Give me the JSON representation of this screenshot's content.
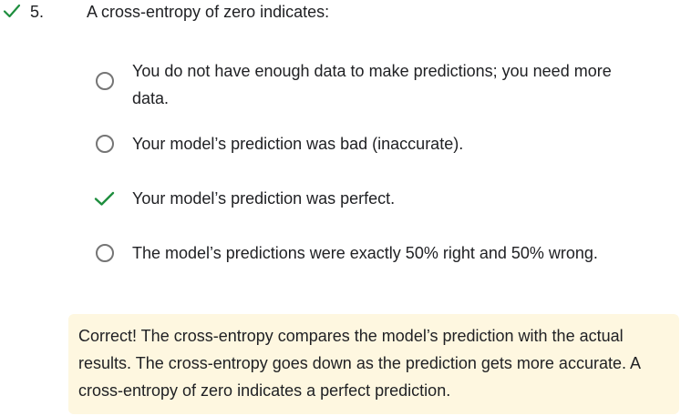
{
  "question": {
    "number": "5.",
    "text": "A cross-entropy of zero indicates:",
    "status_icon": "check-icon",
    "status_color": "#1e8e3e"
  },
  "options": [
    {
      "label": "You do not have enough data to make predictions; you need more data.",
      "state": "unselected"
    },
    {
      "label": "Your model’s prediction was bad (inaccurate).",
      "state": "unselected"
    },
    {
      "label": "Your model’s prediction was perfect.",
      "state": "correct-selected"
    },
    {
      "label": "The model’s predictions were exactly 50% right and 50% wrong.",
      "state": "unselected"
    }
  ],
  "feedback": {
    "text": "Correct! The cross-entropy compares the model’s prediction with the actual results. The cross-entropy goes down as the prediction gets more accurate. A cross-entropy of zero indicates a perfect prediction.",
    "background": "#fef7e0"
  },
  "colors": {
    "check": "#1e8e3e",
    "radio_border": "#757575",
    "text": "#202124"
  }
}
